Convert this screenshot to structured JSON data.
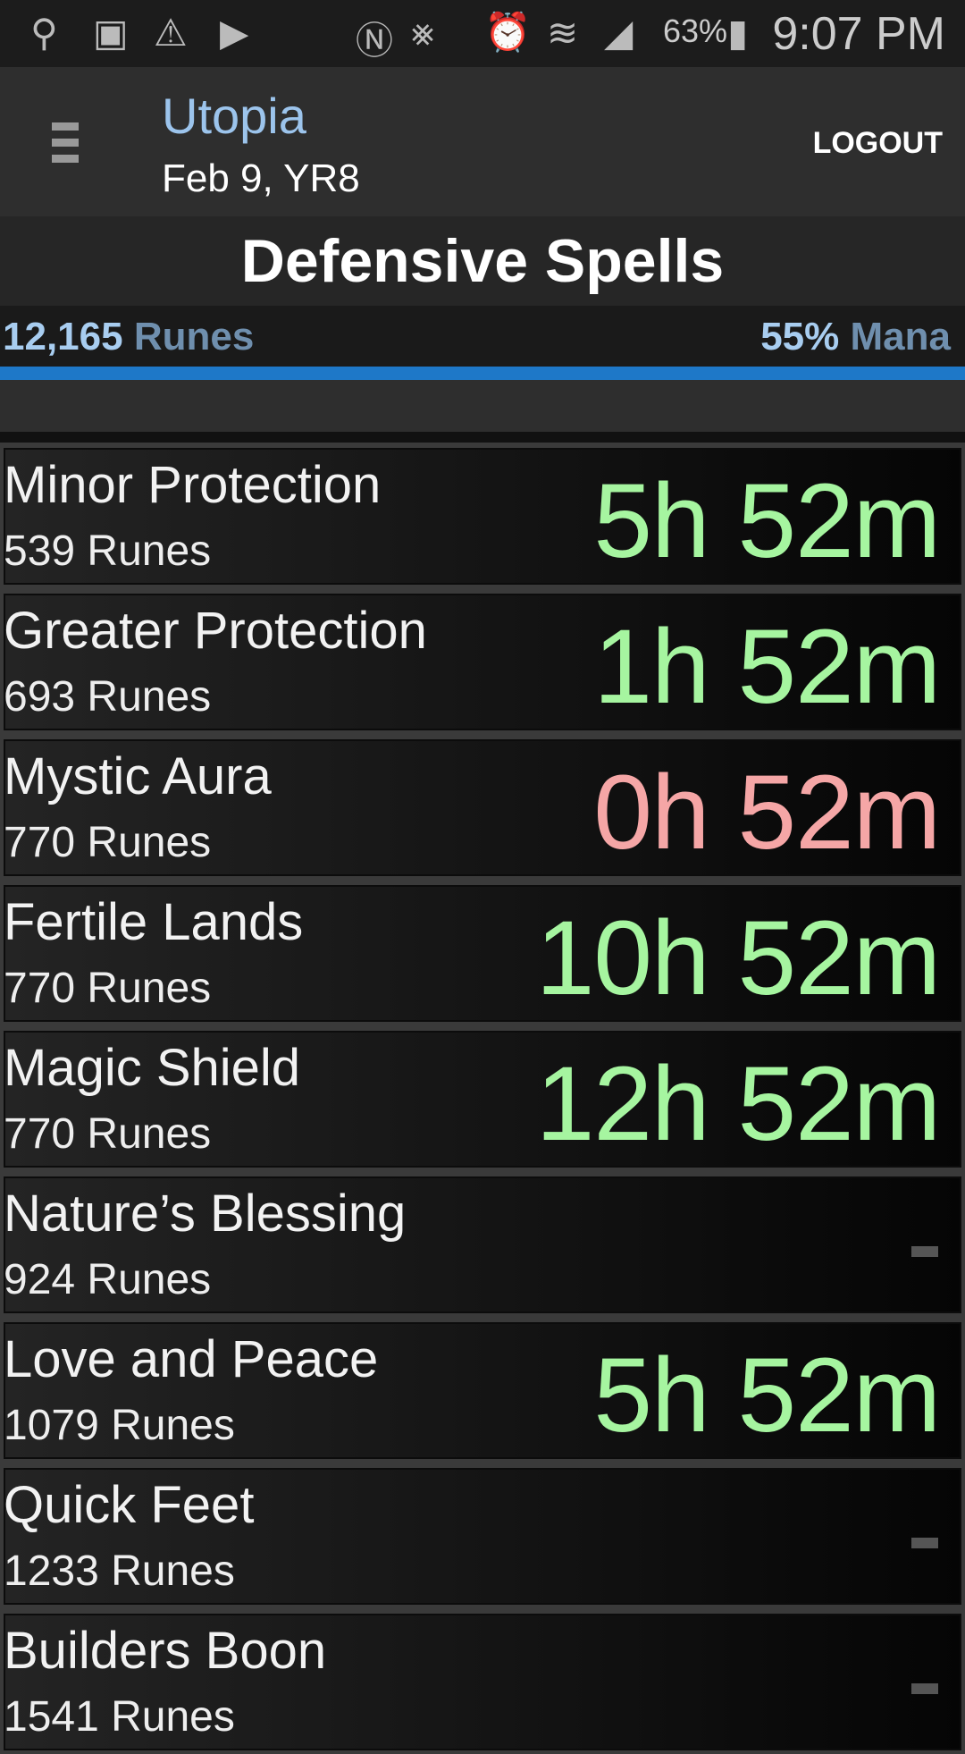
{
  "status_bar": {
    "battery": "63%",
    "time": "9:07 PM",
    "icons": [
      "usb-icon",
      "image-icon",
      "warning-icon",
      "store-icon",
      "nfc-icon",
      "vibrate-icon",
      "alarm-icon",
      "wifi-icon",
      "signal-icon",
      "battery-charging-icon"
    ]
  },
  "app_bar": {
    "title": "Utopia",
    "date": "Feb 9, YR8",
    "logout": "LOGOUT"
  },
  "page_title": "Defensive Spells",
  "resources": {
    "runes_value": "12,165",
    "runes_label": "Runes",
    "mana_value": "55%",
    "mana_label": "Mana"
  },
  "colors": {
    "active": "#a6f5a0",
    "expiring": "#f5a6a6",
    "accent": "#1e78c8"
  },
  "spells": [
    {
      "name": "Minor Protection",
      "cost": "539 Runes",
      "duration": "5h 52m",
      "state": "active"
    },
    {
      "name": "Greater Protection",
      "cost": "693 Runes",
      "duration": "1h 52m",
      "state": "active"
    },
    {
      "name": "Mystic Aura",
      "cost": "770 Runes",
      "duration": "0h 52m",
      "state": "expiring"
    },
    {
      "name": "Fertile Lands",
      "cost": "770 Runes",
      "duration": "10h 52m",
      "state": "active"
    },
    {
      "name": "Magic Shield",
      "cost": "770 Runes",
      "duration": "12h 52m",
      "state": "active"
    },
    {
      "name": "Nature’s Blessing",
      "cost": "924 Runes",
      "duration": "",
      "state": "inactive"
    },
    {
      "name": "Love and Peace",
      "cost": "1079 Runes",
      "duration": "5h 52m",
      "state": "active"
    },
    {
      "name": "Quick Feet",
      "cost": "1233 Runes",
      "duration": "",
      "state": "inactive"
    },
    {
      "name": "Builders Boon",
      "cost": "1541 Runes",
      "duration": "",
      "state": "inactive"
    }
  ]
}
